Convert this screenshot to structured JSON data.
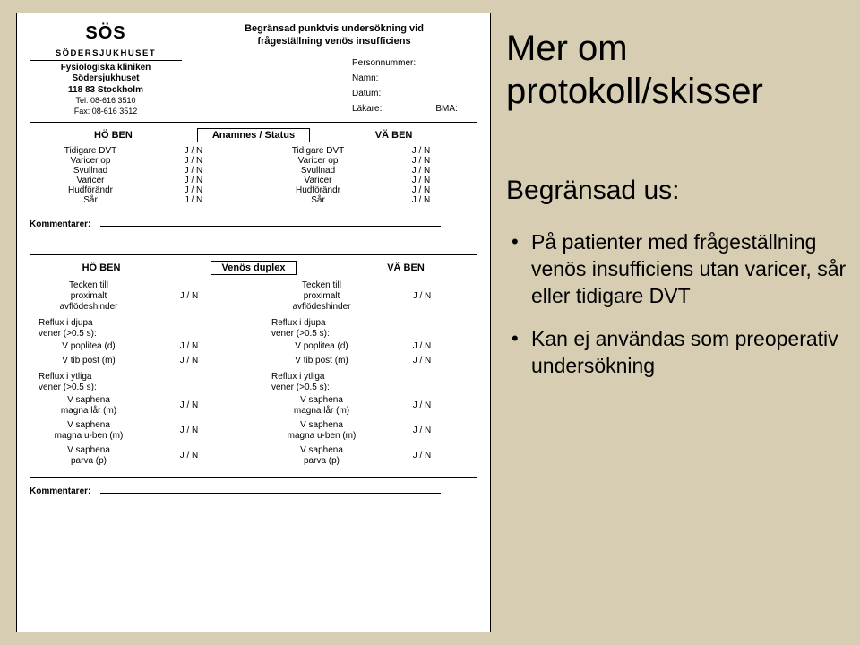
{
  "form": {
    "title1": "Begränsad punktvis undersökning vid",
    "title2": "frågeställning venös insufficiens",
    "clinic": {
      "logo": "SÖS",
      "logoline": "SÖDERSJUKHUSET",
      "line1": "Fysiologiska kliniken",
      "line2": "Södersjukhuset",
      "line3": "118 83 Stockholm",
      "tel": "Tel: 08-616 3510",
      "fax": "Fax: 08-616 3512"
    },
    "meta": {
      "pn": "Personnummer:",
      "name": "Namn:",
      "date": "Datum:",
      "doc": "Läkare:",
      "bma": "BMA:"
    },
    "legs": {
      "ho": "HÖ BEN",
      "va": "VÄ BEN",
      "status": "Anamnes / Status"
    },
    "anamnes": [
      {
        "l": "Tidigare DVT",
        "v": "J  /  N"
      },
      {
        "l": "Varicer op",
        "v": "J  /  N"
      },
      {
        "l": "Svullnad",
        "v": "J  /  N"
      },
      {
        "l": "Varicer",
        "v": "J  /  N"
      },
      {
        "l": "Hudförändr",
        "v": "J  /  N"
      },
      {
        "l": "Sår",
        "v": "J  /  N"
      }
    ],
    "comment": "Kommentarer:",
    "venos": "Venös duplex",
    "tecken": {
      "l1": "Tecken till",
      "l2": "proximalt",
      "l3": "avflödeshinder",
      "v": "J  /  N"
    },
    "djupa": {
      "head1": "Reflux i djupa",
      "head2": "vener (>0.5 s):",
      "rows": [
        {
          "l": "V poplitea (d)",
          "v": "J  /  N"
        },
        {
          "l": "V tib post (m)",
          "v": "J  /  N"
        }
      ]
    },
    "ytliga": {
      "head1": "Reflux i ytliga",
      "head2": "vener (>0.5 s):",
      "rows": [
        {
          "l": "V saphena magna lår (m)",
          "v": "J  /  N"
        },
        {
          "l": "V saphena magna u-ben (m)",
          "v": "J  /  N"
        },
        {
          "l": "V saphena parva (p)",
          "v": "J  /  N"
        }
      ]
    }
  },
  "rhs": {
    "h1a": "Mer om",
    "h1b": "protokoll/skisser",
    "h2": "Begränsad us:",
    "b1": "På patienter med frågeställning venös insufficiens utan varicer, sår eller tidigare DVT",
    "b2": "Kan ej användas som preoperativ undersökning"
  }
}
